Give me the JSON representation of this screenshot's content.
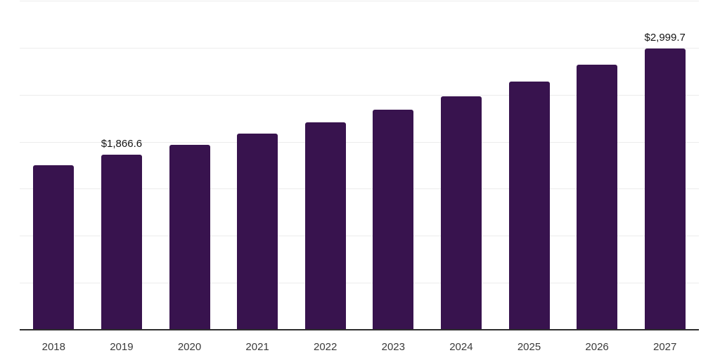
{
  "chart_data": {
    "type": "bar",
    "title": "",
    "xlabel": "",
    "ylabel": "",
    "categories": [
      "2018",
      "2019",
      "2020",
      "2021",
      "2022",
      "2023",
      "2024",
      "2025",
      "2026",
      "2027"
    ],
    "values": [
      1759,
      1866.6,
      1975,
      2095,
      2215,
      2345,
      2490,
      2650,
      2825,
      2999.7
    ],
    "data_labels": [
      "",
      "$1,866.6",
      "",
      "",
      "",
      "",
      "",
      "",
      "",
      "$2,999.7"
    ],
    "ylim": [
      0,
      3500
    ],
    "gridline_values": [
      500,
      1000,
      1500,
      2000,
      2500,
      3000,
      3500
    ],
    "grid": "horizontal",
    "legend": "none"
  },
  "style": {
    "bar_color": "#38134E",
    "gridline_color": "#ECECEC",
    "axis_line_color": "#2E2E2E",
    "tick_label_color": "#3A3A3A",
    "data_label_color": "#141414",
    "background_color": "#FFFFFF"
  }
}
